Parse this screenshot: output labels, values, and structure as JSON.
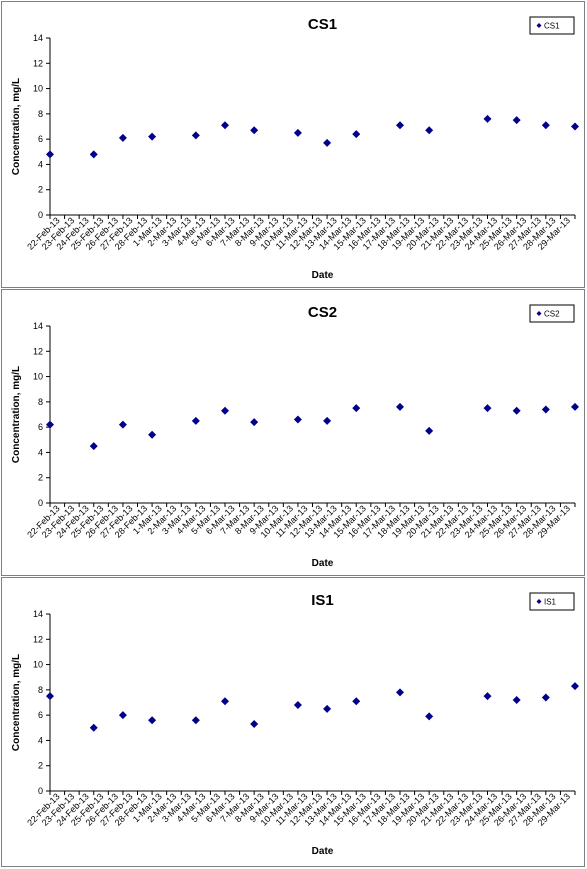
{
  "chart_data": [
    {
      "type": "scatter",
      "title": "CS1",
      "xlabel": "Date",
      "ylabel": "Concentration, mg/L",
      "ylim": [
        0,
        14
      ],
      "yticks": [
        0,
        2,
        4,
        6,
        8,
        10,
        12,
        14
      ],
      "categories": [
        "22-Feb-13",
        "23-Feb-13",
        "24-Feb-13",
        "25-Feb-13",
        "26-Feb-13",
        "27-Feb-13",
        "28-Feb-13",
        "1-Mar-13",
        "2-Mar-13",
        "3-Mar-13",
        "4-Mar-13",
        "5-Mar-13",
        "6-Mar-13",
        "7-Mar-13",
        "8-Mar-13",
        "9-Mar-13",
        "10-Mar-13",
        "11-Mar-13",
        "12-Mar-13",
        "13-Mar-13",
        "14-Mar-13",
        "15-Mar-13",
        "16-Mar-13",
        "17-Mar-13",
        "18-Mar-13",
        "19-Mar-13",
        "20-Mar-13",
        "21-Mar-13",
        "22-Mar-13",
        "23-Mar-13",
        "24-Mar-13",
        "25-Mar-13",
        "26-Mar-13",
        "27-Mar-13",
        "28-Mar-13",
        "29-Mar-13"
      ],
      "legend": "top-right",
      "series": [
        {
          "name": "CS1",
          "color": "#00008b",
          "points": [
            {
              "x": "22-Feb-13",
              "y": 4.8
            },
            {
              "x": "25-Feb-13",
              "y": 4.8
            },
            {
              "x": "27-Feb-13",
              "y": 6.1
            },
            {
              "x": "1-Mar-13",
              "y": 6.2
            },
            {
              "x": "4-Mar-13",
              "y": 6.3
            },
            {
              "x": "6-Mar-13",
              "y": 7.1
            },
            {
              "x": "8-Mar-13",
              "y": 6.7
            },
            {
              "x": "11-Mar-13",
              "y": 6.5
            },
            {
              "x": "13-Mar-13",
              "y": 5.7
            },
            {
              "x": "15-Mar-13",
              "y": 6.4
            },
            {
              "x": "18-Mar-13",
              "y": 7.1
            },
            {
              "x": "20-Mar-13",
              "y": 6.7
            },
            {
              "x": "24-Mar-13",
              "y": 7.6
            },
            {
              "x": "26-Mar-13",
              "y": 7.5
            },
            {
              "x": "28-Mar-13",
              "y": 7.1
            },
            {
              "x": "30-Mar-13",
              "y": 7.0
            }
          ]
        }
      ]
    },
    {
      "type": "scatter",
      "title": "CS2",
      "xlabel": "Date",
      "ylabel": "Concentration, mg/L",
      "ylim": [
        0,
        14
      ],
      "yticks": [
        0,
        2,
        4,
        6,
        8,
        10,
        12,
        14
      ],
      "categories": [
        "22-Feb-13",
        "23-Feb-13",
        "24-Feb-13",
        "25-Feb-13",
        "26-Feb-13",
        "27-Feb-13",
        "28-Feb-13",
        "1-Mar-13",
        "2-Mar-13",
        "3-Mar-13",
        "4-Mar-13",
        "5-Mar-13",
        "6-Mar-13",
        "7-Mar-13",
        "8-Mar-13",
        "9-Mar-13",
        "10-Mar-13",
        "11-Mar-13",
        "12-Mar-13",
        "13-Mar-13",
        "14-Mar-13",
        "15-Mar-13",
        "16-Mar-13",
        "17-Mar-13",
        "18-Mar-13",
        "19-Mar-13",
        "20-Mar-13",
        "21-Mar-13",
        "22-Mar-13",
        "23-Mar-13",
        "24-Mar-13",
        "25-Mar-13",
        "26-Mar-13",
        "27-Mar-13",
        "28-Mar-13",
        "29-Mar-13"
      ],
      "legend": "top-right",
      "series": [
        {
          "name": "CS2",
          "color": "#00008b",
          "points": [
            {
              "x": "22-Feb-13",
              "y": 6.2
            },
            {
              "x": "25-Feb-13",
              "y": 4.5
            },
            {
              "x": "27-Feb-13",
              "y": 6.2
            },
            {
              "x": "1-Mar-13",
              "y": 5.4
            },
            {
              "x": "4-Mar-13",
              "y": 6.5
            },
            {
              "x": "6-Mar-13",
              "y": 7.3
            },
            {
              "x": "8-Mar-13",
              "y": 6.4
            },
            {
              "x": "11-Mar-13",
              "y": 6.6
            },
            {
              "x": "13-Mar-13",
              "y": 6.5
            },
            {
              "x": "15-Mar-13",
              "y": 7.5
            },
            {
              "x": "18-Mar-13",
              "y": 7.6
            },
            {
              "x": "20-Mar-13",
              "y": 5.7
            },
            {
              "x": "24-Mar-13",
              "y": 7.5
            },
            {
              "x": "26-Mar-13",
              "y": 7.3
            },
            {
              "x": "28-Mar-13",
              "y": 7.4
            },
            {
              "x": "30-Mar-13",
              "y": 7.6
            }
          ]
        }
      ]
    },
    {
      "type": "scatter",
      "title": "IS1",
      "xlabel": "Date",
      "ylabel": "Concentration, mg/L",
      "ylim": [
        0,
        14
      ],
      "yticks": [
        0,
        2,
        4,
        6,
        8,
        10,
        12,
        14
      ],
      "categories": [
        "22-Feb-13",
        "23-Feb-13",
        "24-Feb-13",
        "25-Feb-13",
        "26-Feb-13",
        "27-Feb-13",
        "28-Feb-13",
        "1-Mar-13",
        "2-Mar-13",
        "3-Mar-13",
        "4-Mar-13",
        "5-Mar-13",
        "6-Mar-13",
        "7-Mar-13",
        "8-Mar-13",
        "9-Mar-13",
        "10-Mar-13",
        "11-Mar-13",
        "12-Mar-13",
        "13-Mar-13",
        "14-Mar-13",
        "15-Mar-13",
        "16-Mar-13",
        "17-Mar-13",
        "18-Mar-13",
        "19-Mar-13",
        "20-Mar-13",
        "21-Mar-13",
        "22-Mar-13",
        "23-Mar-13",
        "24-Mar-13",
        "25-Mar-13",
        "26-Mar-13",
        "27-Mar-13",
        "28-Mar-13",
        "29-Mar-13"
      ],
      "legend": "top-right",
      "series": [
        {
          "name": "IS1",
          "color": "#00008b",
          "points": [
            {
              "x": "22-Feb-13",
              "y": 7.5
            },
            {
              "x": "25-Feb-13",
              "y": 5.0
            },
            {
              "x": "27-Feb-13",
              "y": 6.0
            },
            {
              "x": "1-Mar-13",
              "y": 5.6
            },
            {
              "x": "4-Mar-13",
              "y": 5.6
            },
            {
              "x": "6-Mar-13",
              "y": 7.1
            },
            {
              "x": "8-Mar-13",
              "y": 5.3
            },
            {
              "x": "11-Mar-13",
              "y": 6.8
            },
            {
              "x": "13-Mar-13",
              "y": 6.5
            },
            {
              "x": "15-Mar-13",
              "y": 7.1
            },
            {
              "x": "18-Mar-13",
              "y": 7.8
            },
            {
              "x": "20-Mar-13",
              "y": 5.9
            },
            {
              "x": "24-Mar-13",
              "y": 7.5
            },
            {
              "x": "26-Mar-13",
              "y": 7.2
            },
            {
              "x": "28-Mar-13",
              "y": 7.4
            },
            {
              "x": "30-Mar-13",
              "y": 8.3
            }
          ]
        }
      ]
    }
  ]
}
